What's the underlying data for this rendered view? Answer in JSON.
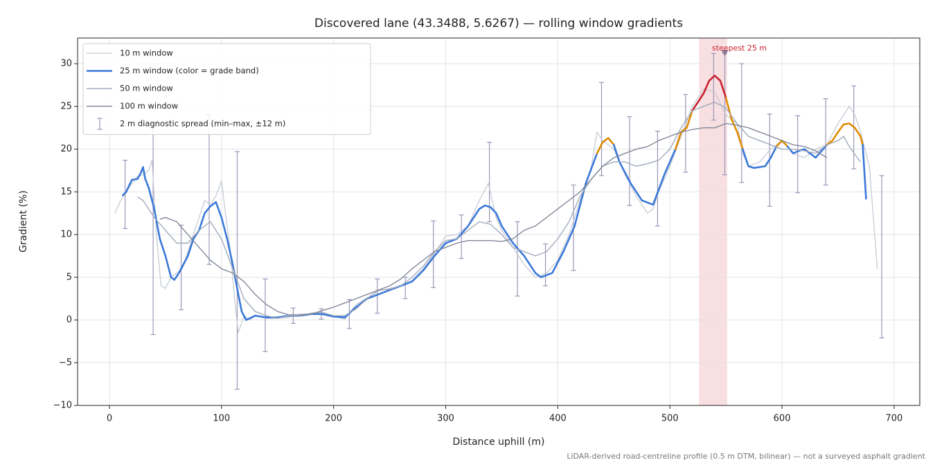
{
  "chart_data": {
    "type": "line",
    "title": "Discovered lane (43.3488, 5.6267) — rolling window gradients",
    "xlabel": "Distance uphill (m)",
    "ylabel": "Gradient (%)",
    "note": "LiDAR-derived road-centreline profile (0.5 m DTM, bilinear) — not a surveyed asphalt gradient",
    "xlim": [
      -28.4,
      722.9
    ],
    "ylim": [
      -10,
      33
    ],
    "xticks": [
      0,
      100,
      200,
      300,
      400,
      500,
      600,
      700
    ],
    "yticks": [
      {
        "value": -10,
        "label": "−10"
      },
      {
        "value": -5,
        "label": "−5"
      },
      0,
      5,
      10,
      15,
      20,
      25,
      30
    ],
    "grid": true,
    "legend": "upper left",
    "band_thresholds": [
      20,
      25
    ],
    "band_colors": [
      "#3a78d8",
      "#e08a00",
      "#c8202e"
    ],
    "series": [
      {
        "name": "10 m window",
        "color": "#c5cbd6",
        "width": 1.3,
        "x": [
          5,
          10,
          15,
          20,
          25,
          30,
          35,
          38,
          42,
          46,
          50,
          55,
          60,
          65,
          70,
          75,
          80,
          85,
          90,
          95,
          100,
          103,
          108,
          112,
          115,
          120,
          125,
          130,
          140,
          150,
          160,
          170,
          180,
          190,
          200,
          210,
          220,
          230,
          240,
          250,
          260,
          270,
          280,
          290,
          300,
          310,
          320,
          330,
          338,
          345,
          350,
          360,
          370,
          380,
          390,
          400,
          410,
          420,
          430,
          435,
          440,
          450,
          460,
          470,
          480,
          485,
          490,
          500,
          510,
          520,
          530,
          540,
          550,
          560,
          565,
          570,
          580,
          590,
          600,
          610,
          620,
          630,
          640,
          650,
          660,
          665,
          670,
          678,
          685
        ],
        "values": [
          12.5,
          14,
          15,
          16,
          16.8,
          17,
          17.5,
          18.7,
          10,
          4,
          3.7,
          5,
          5.5,
          6,
          8,
          10,
          12,
          14,
          13.5,
          14.5,
          16.3,
          13,
          8,
          2,
          -1.5,
          0.5,
          0,
          0.5,
          0.2,
          0.2,
          0.3,
          0.7,
          0.7,
          0.6,
          0.5,
          0.1,
          1.8,
          2.6,
          3.4,
          3.7,
          4,
          4.6,
          6,
          7.8,
          9.8,
          10,
          11,
          14,
          16,
          12,
          10.5,
          8.5,
          6.5,
          5,
          5.5,
          7,
          10,
          14,
          18,
          22,
          21,
          20,
          17,
          14.5,
          12.5,
          13,
          15,
          18,
          21.5,
          25,
          27,
          26.7,
          24,
          23,
          19.5,
          18,
          18.5,
          20,
          21,
          19.5,
          19,
          20,
          20.5,
          23,
          25,
          24,
          22,
          18,
          6
        ]
      },
      {
        "name": "25 m window (color = grade band)",
        "color": "#3a78d8",
        "width": 2.6,
        "banded": true,
        "x": [
          12,
          15,
          20,
          25,
          28,
          30,
          32,
          35,
          40,
          45,
          50,
          55,
          58,
          62,
          70,
          75,
          80,
          85,
          90,
          95,
          100,
          105,
          110,
          115,
          118,
          122,
          130,
          140,
          150,
          160,
          170,
          180,
          190,
          200,
          210,
          220,
          230,
          240,
          250,
          260,
          270,
          280,
          290,
          300,
          310,
          320,
          330,
          335,
          340,
          345,
          350,
          360,
          370,
          380,
          385,
          395,
          405,
          415,
          425,
          435,
          440,
          445,
          450,
          455,
          465,
          475,
          485,
          495,
          505,
          510,
          515,
          520,
          525,
          530,
          535,
          540,
          545,
          550,
          555,
          560,
          565,
          570,
          575,
          585,
          590,
          595,
          600,
          605,
          610,
          615,
          620,
          625,
          630,
          640,
          645,
          650,
          655,
          660,
          665,
          670,
          672,
          675
        ],
        "values": [
          14.6,
          15,
          16.4,
          16.5,
          17.2,
          17.9,
          16.5,
          15.5,
          13,
          9.5,
          7.5,
          5,
          4.7,
          5.5,
          7.5,
          9.5,
          10.5,
          12.5,
          13.3,
          13.8,
          12,
          9.5,
          6.5,
          3,
          1,
          0,
          0.5,
          0.3,
          0.3,
          0.5,
          0.5,
          0.7,
          0.7,
          0.4,
          0.3,
          1.5,
          2.5,
          3,
          3.5,
          4,
          4.5,
          5.8,
          7.5,
          9,
          9.5,
          11,
          13,
          13.4,
          13.2,
          12.5,
          11,
          9,
          7.5,
          5.5,
          5,
          5.5,
          8,
          11,
          16,
          19.5,
          20.8,
          21.3,
          20.5,
          18.5,
          16,
          14,
          13.5,
          17,
          20,
          22,
          22.5,
          24.5,
          25.5,
          26.5,
          28,
          28.6,
          28,
          26,
          23.5,
          22,
          20,
          18,
          17.8,
          18,
          19,
          20.3,
          21,
          20.3,
          19.5,
          19.8,
          20,
          19.5,
          19,
          20.5,
          21,
          22,
          22.9,
          23,
          22.5,
          21.5,
          20.5,
          14.2
        ]
      },
      {
        "name": "50 m window",
        "color": "#a0aabb",
        "width": 1.4,
        "x": [
          25,
          30,
          40,
          50,
          60,
          70,
          80,
          90,
          100,
          110,
          120,
          130,
          140,
          150,
          160,
          170,
          180,
          190,
          200,
          210,
          220,
          230,
          240,
          250,
          260,
          270,
          280,
          290,
          300,
          310,
          320,
          330,
          340,
          350,
          360,
          370,
          380,
          390,
          400,
          410,
          420,
          430,
          440,
          450,
          460,
          470,
          480,
          490,
          500,
          510,
          520,
          530,
          540,
          550,
          560,
          570,
          580,
          590,
          600,
          610,
          620,
          630,
          640,
          650,
          655,
          660,
          670
        ],
        "values": [
          14.4,
          14,
          12,
          10.5,
          9,
          9,
          10.5,
          11.5,
          9.5,
          6,
          2.5,
          1,
          0.5,
          0.2,
          0.5,
          0.5,
          0.8,
          0.9,
          0.5,
          0.5,
          1.3,
          2.5,
          3.5,
          3.6,
          4,
          5,
          6.3,
          8,
          9.3,
          9.5,
          10.5,
          11.5,
          11.2,
          10,
          8.5,
          8,
          7.5,
          8,
          9.5,
          11.5,
          14.5,
          16.5,
          18,
          18.5,
          18.5,
          18,
          18.3,
          18.7,
          20,
          22.5,
          24.5,
          25,
          25.5,
          24.8,
          23,
          21.5,
          21,
          20.5,
          20,
          20,
          19.8,
          19.5,
          20.5,
          21,
          21.5,
          20.3,
          18.5
        ]
      },
      {
        "name": "100 m window",
        "color": "#808898",
        "width": 1.4,
        "x": [
          45,
          50,
          60,
          70,
          80,
          90,
          100,
          110,
          120,
          130,
          140,
          150,
          160,
          170,
          180,
          190,
          200,
          210,
          220,
          230,
          240,
          250,
          260,
          270,
          280,
          290,
          300,
          310,
          320,
          330,
          340,
          350,
          360,
          370,
          380,
          390,
          400,
          410,
          420,
          430,
          440,
          450,
          460,
          470,
          480,
          490,
          500,
          510,
          520,
          530,
          540,
          550,
          560,
          570,
          580,
          590,
          600,
          610,
          620,
          630,
          640
        ],
        "values": [
          11.8,
          12,
          11.5,
          10,
          8.5,
          7,
          6,
          5.5,
          4.5,
          3,
          1.8,
          1,
          0.6,
          0.6,
          0.7,
          1.1,
          1.5,
          2,
          2.5,
          3,
          3.5,
          4,
          4.8,
          6,
          7,
          8,
          8.5,
          9,
          9.3,
          9.3,
          9.3,
          9.2,
          9.5,
          10.5,
          11,
          12,
          13,
          14,
          15,
          16.5,
          18,
          19,
          19.5,
          20,
          20.3,
          21,
          21.5,
          22,
          22.3,
          22.5,
          22.5,
          23,
          22.8,
          22.5,
          22,
          21.5,
          21,
          20.5,
          20.3,
          19.8,
          19
        ]
      }
    ],
    "errorbars": {
      "name": "2 m diagnostic spread (min–max, ±12 m)",
      "color": "#9a96b8",
      "x": [
        14,
        39,
        64,
        89,
        114,
        139,
        164,
        189,
        214,
        239,
        264,
        289,
        314,
        339,
        364,
        389,
        414,
        439,
        464,
        489,
        514,
        539,
        549,
        564,
        589,
        614,
        639,
        664,
        689
      ],
      "min": [
        10.7,
        -1.7,
        1.2,
        6.5,
        -8.1,
        -3.7,
        -0.4,
        0.1,
        -1.0,
        0.8,
        2.5,
        3.8,
        7.2,
        11.5,
        2.8,
        4.0,
        5.8,
        16.9,
        13.4,
        11.0,
        17.3,
        23.4,
        17.0,
        16.1,
        13.3,
        14.9,
        15.8,
        17.7,
        -2.1
      ],
      "max": [
        18.7,
        23,
        11.1,
        24,
        19.7,
        4.8,
        1.4,
        1.3,
        2.4,
        4.8,
        5.0,
        11.6,
        12.3,
        20.8,
        11.5,
        8.9,
        15.8,
        27.8,
        23.8,
        22.1,
        26.4,
        31.2,
        31.2,
        30.0,
        24.1,
        23.9,
        25.9,
        27.4,
        16.9
      ]
    },
    "highlight": {
      "xrange": [
        526,
        551
      ],
      "color": "#f2c4c9"
    },
    "annotation": {
      "text": "steepest 25 m",
      "x": 549,
      "y": 31.2,
      "color": "#c8202e"
    }
  }
}
